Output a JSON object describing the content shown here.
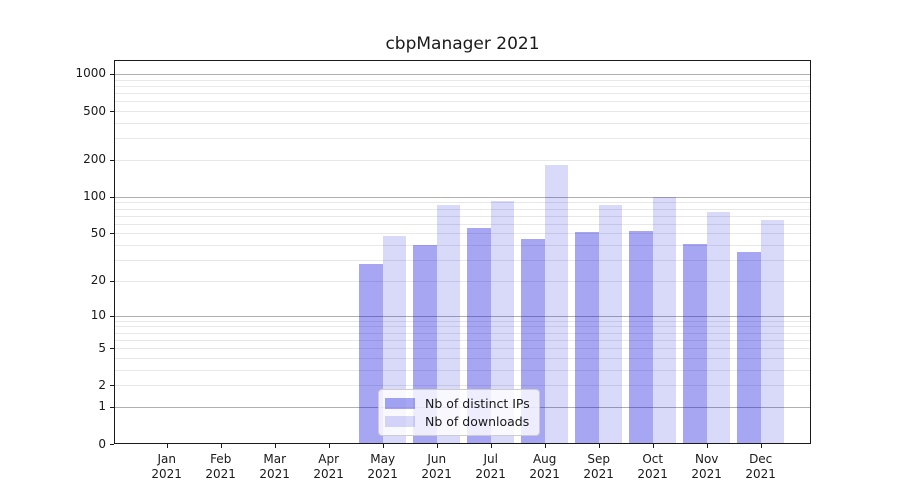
{
  "title": "cbpManager 2021",
  "legend": {
    "items": [
      {
        "label": "Nb of distinct IPs",
        "color": "rgba(0,0,220,0.35)"
      },
      {
        "label": "Nb of downloads",
        "color": "rgba(0,0,220,0.15)"
      }
    ]
  },
  "x_axis": {
    "year": "2021",
    "months": [
      "Jan",
      "Feb",
      "Mar",
      "Apr",
      "May",
      "Jun",
      "Jul",
      "Aug",
      "Sep",
      "Oct",
      "Nov",
      "Dec"
    ]
  },
  "y_axis": {
    "ticks": [
      0,
      1,
      2,
      5,
      10,
      20,
      50,
      100,
      200,
      500,
      1000
    ]
  },
  "chart_data": {
    "type": "bar",
    "title": "cbpManager 2021",
    "categories": [
      "Jan 2021",
      "Feb 2021",
      "Mar 2021",
      "Apr 2021",
      "May 2021",
      "Jun 2021",
      "Jul 2021",
      "Aug 2021",
      "Sep 2021",
      "Oct 2021",
      "Nov 2021",
      "Dec 2021"
    ],
    "series": [
      {
        "name": "Nb of distinct IPs",
        "color": "rgba(0,0,220,0.35)",
        "values": [
          0,
          0,
          0,
          0,
          28,
          40,
          55,
          45,
          51,
          52,
          41,
          35
        ]
      },
      {
        "name": "Nb of downloads",
        "color": "rgba(0,0,220,0.15)",
        "values": [
          0,
          0,
          0,
          0,
          48,
          85,
          92,
          183,
          86,
          100,
          75,
          64
        ]
      }
    ],
    "xlabel": "",
    "ylabel": "",
    "ylim": [
      0,
      1000
    ],
    "y_scale": "log10(1+x)",
    "y_ticks": [
      0,
      1,
      2,
      5,
      10,
      20,
      50,
      100,
      200,
      500,
      1000
    ],
    "grid": "major decades dark, minor 2-9 per decade light",
    "legend_position": "lower center"
  }
}
